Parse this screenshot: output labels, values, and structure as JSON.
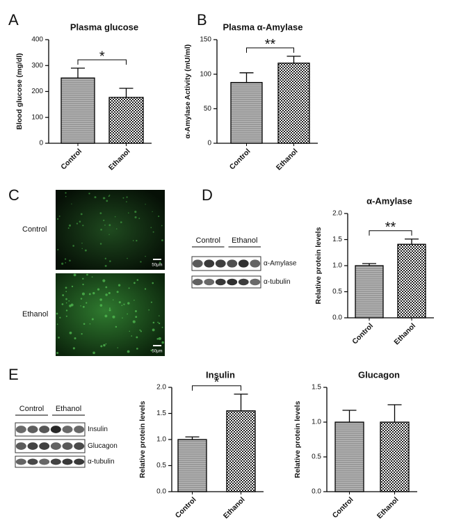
{
  "chart_data": [
    {
      "type": "bar",
      "title": "Plasma glucose",
      "ylabel": "Blood glucose (mg/dl)",
      "categories": [
        "Control",
        "Ethanol"
      ],
      "values": [
        252,
        177
      ],
      "errors": [
        38,
        35
      ],
      "ylim": [
        0,
        400
      ],
      "yticks": [
        0,
        100,
        200,
        300,
        400
      ],
      "significance": "*"
    },
    {
      "type": "bar",
      "title": "Plasma α-Amylase",
      "ylabel": "α-Amylase Activity (mU/ml)",
      "categories": [
        "Control",
        "Ethanol"
      ],
      "values": [
        88,
        116
      ],
      "errors": [
        14,
        10
      ],
      "ylim": [
        0,
        150
      ],
      "yticks": [
        0,
        50,
        100,
        150
      ],
      "significance": "**"
    },
    {
      "type": "bar",
      "title": "α-Amylase",
      "ylabel": "Relative protein levels",
      "categories": [
        "Control",
        "Ethanol"
      ],
      "values": [
        1.0,
        1.41
      ],
      "errors": [
        0.04,
        0.1
      ],
      "ylim": [
        0,
        2
      ],
      "yticks": [
        {
          "value": 0,
          "label": "0.0"
        },
        0.5,
        {
          "value": 1,
          "label": "1.0"
        },
        1.5,
        {
          "value": 2,
          "label": "2.0"
        }
      ],
      "significance": "**"
    },
    {
      "type": "bar",
      "title": "Insulin",
      "ylabel": "Relative protein levels",
      "categories": [
        "Control",
        "Ethanol"
      ],
      "values": [
        1.0,
        1.55
      ],
      "errors": [
        0.05,
        0.32
      ],
      "ylim": [
        0,
        2
      ],
      "yticks": [
        {
          "value": 0,
          "label": "0.0"
        },
        0.5,
        {
          "value": 1,
          "label": "1.0"
        },
        1.5,
        {
          "value": 2,
          "label": "2.0"
        }
      ],
      "significance": "*"
    },
    {
      "type": "bar",
      "title": "Glucagon",
      "ylabel": "Relative protein levels",
      "categories": [
        "Control",
        "Ethanol"
      ],
      "values": [
        1.0,
        1.0
      ],
      "errors": [
        0.17,
        0.25
      ],
      "ylim": [
        0,
        1.5
      ],
      "yticks": [
        {
          "value": 0,
          "label": "0.0"
        },
        0.5,
        {
          "value": 1,
          "label": "1.0"
        },
        1.5
      ]
    }
  ],
  "figure": {
    "panel_labels": [
      "A",
      "B",
      "C",
      "D",
      "E"
    ],
    "micrograph": {
      "rows": [
        "Control",
        "Ethanol"
      ],
      "scale_bar": "50μm"
    },
    "blot_d": {
      "groups": [
        "Control",
        "Ethanol"
      ],
      "bands": [
        "α-Amylase",
        "α-tubulin"
      ]
    },
    "blot_e": {
      "groups": [
        "Control",
        "Ethanol"
      ],
      "bands": [
        "Insulin",
        "Glucagon",
        "α-tubulin"
      ]
    }
  }
}
